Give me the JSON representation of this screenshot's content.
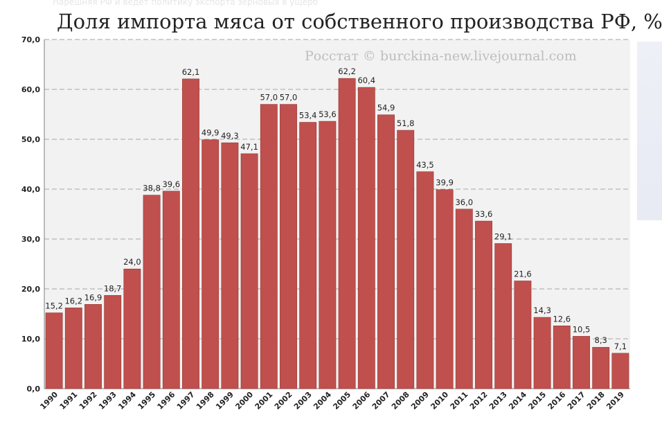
{
  "background": {
    "ghost_text": "Нарешняя РФ и ведёт политику экспорта зерновых в ущерб"
  },
  "chart_data": {
    "type": "bar",
    "title": "Доля импорта мяса от собственного производства РФ, %",
    "watermark": "Росстат © burckina-new.livejournal.com",
    "categories": [
      "1990",
      "1991",
      "1992",
      "1993",
      "1994",
      "1995",
      "1996",
      "1997",
      "1998",
      "1999",
      "2000",
      "2001",
      "2002",
      "2003",
      "2004",
      "2005",
      "2006",
      "2007",
      "2008",
      "2009",
      "2010",
      "2011",
      "2012",
      "2013",
      "2014",
      "2015",
      "2016",
      "2017",
      "2018",
      "2019"
    ],
    "values": [
      15.2,
      16.2,
      16.9,
      18.7,
      24.0,
      38.8,
      39.6,
      62.1,
      49.9,
      49.3,
      47.1,
      57.0,
      57.0,
      53.4,
      53.6,
      62.2,
      60.4,
      54.9,
      51.8,
      43.5,
      39.9,
      36.0,
      33.6,
      29.1,
      21.6,
      14.3,
      12.6,
      10.5,
      8.3,
      7.1
    ],
    "value_labels": [
      "15,2",
      "16,2",
      "16,9",
      "18,7",
      "24,0",
      "38,8",
      "39,6",
      "62,1",
      "49,9",
      "49,3",
      "47,1",
      "57,0",
      "57,0",
      "53,4",
      "53,6",
      "62,2",
      "60,4",
      "54,9",
      "51,8",
      "43,5",
      "39,9",
      "36,0",
      "33,6",
      "29,1",
      "21,6",
      "14,3",
      "12,6",
      "10,5",
      "8,3",
      "7,1"
    ],
    "y_ticks": [
      "0,0",
      "10,0",
      "20,0",
      "30,0",
      "40,0",
      "50,0",
      "60,0",
      "70,0"
    ],
    "ylim": [
      0,
      70
    ],
    "grid": true,
    "legend": "none",
    "bar_color": "#c0504d",
    "bar_edge_color": "#943634"
  }
}
